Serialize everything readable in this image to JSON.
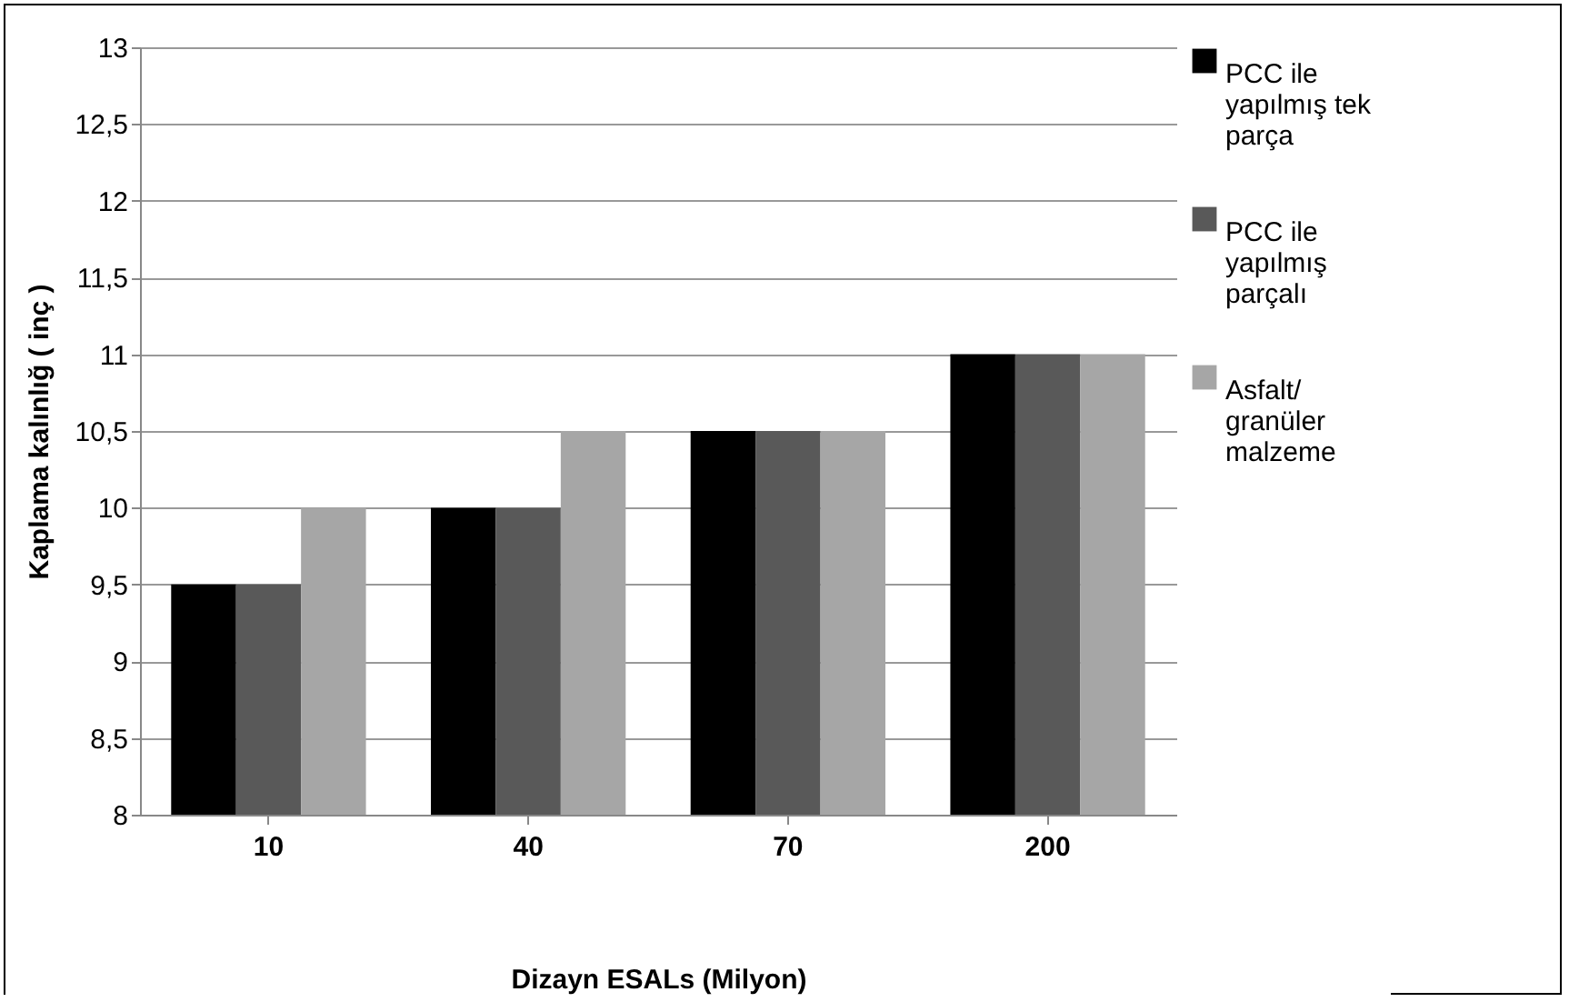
{
  "chart_data": {
    "type": "bar",
    "xlabel": "Dizayn ESALs (Milyon)",
    "ylabel": "Kaplama kalınlığ ( inç )",
    "categories": [
      "10",
      "40",
      "70",
      "200"
    ],
    "series": [
      {
        "name": "PCC ile yapılmış tek parça",
        "color": "#000000",
        "values": [
          9.5,
          10,
          10.5,
          11
        ]
      },
      {
        "name": "PCC ile yapılmış parçalı",
        "color": "#595959",
        "values": [
          9.5,
          10,
          10.5,
          11
        ]
      },
      {
        "name": "Asfalt/ granüler malzeme",
        "color": "#a6a6a6",
        "values": [
          10,
          10.5,
          10.5,
          11
        ]
      }
    ],
    "ylim": [
      8,
      13
    ],
    "yticks": [
      8,
      {
        "value": 8.5,
        "label": "8,5"
      },
      9,
      {
        "value": 9.5,
        "label": "9,5"
      },
      10,
      {
        "value": 10.5,
        "label": "10,5"
      },
      11,
      {
        "value": 11.5,
        "label": "11,5"
      },
      12,
      {
        "value": 12.5,
        "label": "12,5"
      },
      13
    ],
    "grid": true,
    "legend": "right"
  }
}
